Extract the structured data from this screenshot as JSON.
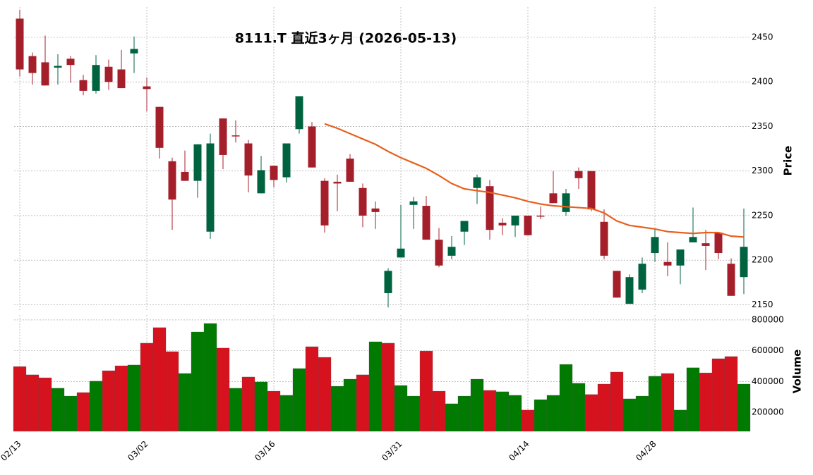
{
  "chart_data": [
    {
      "type": "candlestick",
      "title": "8111.T 直近3ヶ月 (2026-05-13)",
      "ylabel": "Price",
      "up_color": "#006340",
      "down_color": "#a51f2b",
      "open": [
        2471,
        2429,
        2422,
        2416,
        2426,
        2402,
        2390,
        2417,
        2414,
        2432,
        2395,
        2372,
        2311,
        2299,
        2289,
        2232,
        2359,
        2340,
        2331,
        2275,
        2306,
        2293,
        2347,
        2350,
        2289,
        2288,
        2314,
        2281,
        2258,
        2163,
        2203,
        2262,
        2261,
        2223,
        2205,
        2232,
        2281,
        2283,
        2242,
        2239,
        2250,
        2250,
        2275,
        2254,
        2300,
        2300,
        2243,
        2188,
        2151,
        2167,
        2208,
        2198,
        2194,
        2220,
        2219,
        2231,
        2196,
        2181
      ],
      "high": [
        2481,
        2433,
        2452,
        2431,
        2429,
        2408,
        2430,
        2425,
        2436,
        2451,
        2405,
        2372,
        2315,
        2323,
        2330,
        2342,
        2359,
        2357,
        2335,
        2317,
        2306,
        2331,
        2384,
        2355,
        2292,
        2296,
        2319,
        2286,
        2266,
        2191,
        2262,
        2271,
        2272,
        2236,
        2227,
        2244,
        2296,
        2290,
        2247,
        2250,
        2250,
        2260,
        2300,
        2280,
        2304,
        2300,
        2257,
        2188,
        2184,
        2203,
        2235,
        2220,
        2212,
        2259,
        2234,
        2231,
        2202,
        2258
      ],
      "low": [
        2406,
        2397,
        2396,
        2397,
        2399,
        2385,
        2387,
        2391,
        2393,
        2410,
        2367,
        2314,
        2234,
        2289,
        2270,
        2224,
        2302,
        2332,
        2276,
        2275,
        2282,
        2287,
        2342,
        2304,
        2231,
        2255,
        2288,
        2237,
        2235,
        2147,
        2203,
        2235,
        2223,
        2192,
        2201,
        2217,
        2263,
        2223,
        2228,
        2226,
        2228,
        2246,
        2264,
        2250,
        2280,
        2255,
        2201,
        2158,
        2151,
        2163,
        2198,
        2182,
        2173,
        2220,
        2189,
        2201,
        2160,
        2162
      ],
      "close": [
        2414,
        2410,
        2396,
        2418,
        2419,
        2390,
        2419,
        2400,
        2393,
        2437,
        2392,
        2326,
        2268,
        2289,
        2330,
        2331,
        2318,
        2339,
        2295,
        2301,
        2290,
        2331,
        2384,
        2304,
        2239,
        2286,
        2288,
        2250,
        2254,
        2188,
        2213,
        2266,
        2223,
        2194,
        2215,
        2244,
        2293,
        2234,
        2239,
        2250,
        2228,
        2249,
        2264,
        2275,
        2292,
        2257,
        2205,
        2158,
        2181,
        2196,
        2226,
        2194,
        2212,
        2226,
        2216,
        2208,
        2160,
        2215
      ],
      "series": [
        {
          "color": "#e8601c",
          "values": [
            null,
            null,
            null,
            null,
            null,
            null,
            null,
            null,
            null,
            null,
            null,
            null,
            null,
            null,
            null,
            null,
            null,
            null,
            null,
            null,
            null,
            null,
            null,
            null,
            2353,
            2348,
            2342,
            2336,
            2330,
            2322,
            2315,
            2309,
            2303,
            2295,
            2286,
            2280,
            2278,
            2276,
            2273,
            2270,
            2266,
            2263,
            2261,
            2260,
            2259,
            2258,
            2253,
            2244,
            2239,
            2237,
            2235,
            2232,
            2231,
            2230,
            2231,
            2231,
            2227,
            2226
          ]
        }
      ],
      "ylim": [
        2144,
        2484
      ],
      "yticks": [
        2150,
        2200,
        2250,
        2300,
        2350,
        2400,
        2450
      ],
      "grid": true
    },
    {
      "type": "bar",
      "ylabel": "Volume",
      "up_color": "#007a00",
      "down_color": "#d6121f",
      "categories": [
        "02/13",
        null,
        null,
        null,
        null,
        null,
        null,
        null,
        null,
        null,
        "03/02",
        null,
        null,
        null,
        null,
        null,
        null,
        null,
        null,
        null,
        "03/16",
        null,
        null,
        null,
        null,
        null,
        null,
        null,
        null,
        null,
        "03/31",
        null,
        null,
        null,
        null,
        null,
        null,
        null,
        null,
        null,
        "04/14",
        null,
        null,
        null,
        null,
        null,
        null,
        null,
        null,
        null,
        "04/28",
        null,
        null,
        null,
        null,
        null,
        null,
        null
      ],
      "values": [
        497000,
        443000,
        424000,
        356000,
        305000,
        328000,
        402000,
        470000,
        502000,
        507000,
        649000,
        750000,
        594000,
        452000,
        722000,
        777000,
        617000,
        356000,
        429000,
        397000,
        337000,
        310000,
        484000,
        626000,
        557000,
        369000,
        415000,
        443000,
        658000,
        649000,
        374000,
        305000,
        598000,
        337000,
        255000,
        305000,
        415000,
        342000,
        333000,
        310000,
        214000,
        282000,
        310000,
        511000,
        388000,
        315000,
        383000,
        461000,
        287000,
        305000,
        434000,
        452000,
        214000,
        489000,
        456000,
        548000,
        562000,
        383000
      ],
      "ylim": [
        76000,
        832000
      ],
      "yticks": [
        200000,
        400000,
        600000,
        800000
      ],
      "grid": true
    }
  ]
}
